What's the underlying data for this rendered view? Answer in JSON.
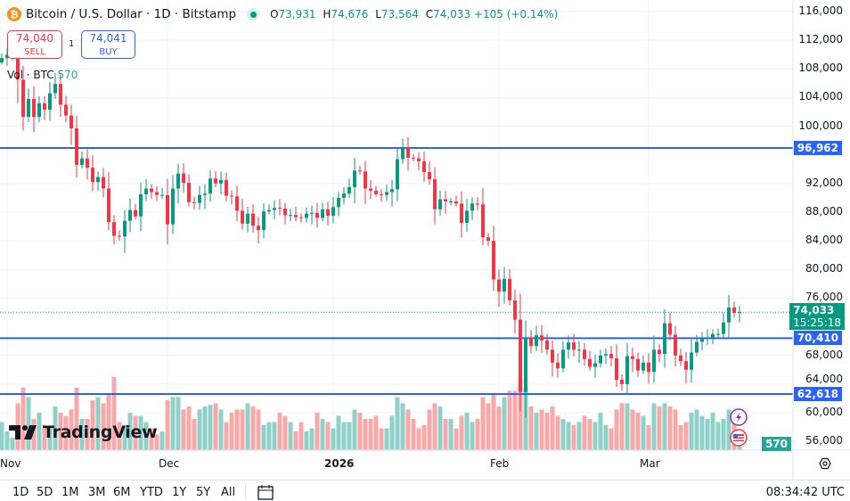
{
  "header": {
    "symbol": "Bitcoin / U.S. Dollar · 1D · Bitstamp",
    "coin_glyph": "₿",
    "ohlc": {
      "o_label": "O",
      "o": "73,931",
      "h_label": "H",
      "h": "74,676",
      "l_label": "L",
      "l": "73,564",
      "c_label": "C",
      "c": "74,033",
      "change": "+105 (+0.14%)"
    }
  },
  "trade": {
    "sell_price": "74,040",
    "sell_label": "SELL",
    "spread": "1",
    "buy_price": "74,041",
    "buy_label": "BUY"
  },
  "volume_legend": {
    "label": "Vol · BTC",
    "value": "570"
  },
  "price_axis": [
    "116,000",
    "112,000",
    "108,000",
    "104,000",
    "100,000",
    "92,000",
    "88,000",
    "84,000",
    "80,000",
    "76,000",
    "68,000",
    "64,000",
    "60,000",
    "56,000"
  ],
  "price_values": [
    116000,
    112000,
    108000,
    104000,
    100000,
    92000,
    88000,
    84000,
    80000,
    76000,
    68000,
    64000,
    60000,
    56000
  ],
  "price_tags": {
    "current": "74,033",
    "countdown": "15:25:18",
    "levels": [
      {
        "label": "96,962",
        "value": 96962
      },
      {
        "label": "70,410",
        "value": 70410
      },
      {
        "label": "62,618",
        "value": 62618
      }
    ],
    "volume": "570"
  },
  "time_axis": [
    {
      "label": "Nov",
      "date": "2025-11-01"
    },
    {
      "label": "Dec",
      "date": "2025-12-01"
    },
    {
      "label": "2026",
      "date": "2026-01-01"
    },
    {
      "label": "Feb",
      "date": "2026-02-01"
    },
    {
      "label": "Mar",
      "date": "2026-03-01"
    }
  ],
  "ranges": [
    "1D",
    "5D",
    "1M",
    "3M",
    "6M",
    "YTD",
    "1Y",
    "5Y",
    "All"
  ],
  "clock": "08:34:42 UTC",
  "logo": "TradingView",
  "colors": {
    "up": "#089981",
    "down": "#f23645",
    "line": "#2962ff",
    "vol_up": "#8fd1c8",
    "vol_down": "#f7a9a7"
  },
  "chart_data": {
    "type": "candlestick",
    "symbol": "BTCUSD",
    "ylim": [
      56000,
      116000
    ],
    "horizontal_lines": [
      96962,
      70410,
      62618
    ],
    "candles_close_volume": [
      [
        "2025-10-31",
        109500,
        900
      ],
      [
        "2025-11-01",
        110000,
        600
      ],
      [
        "2025-11-02",
        110500,
        400
      ],
      [
        "2025-11-03",
        106500,
        1500
      ],
      [
        "2025-11-04",
        101300,
        2000
      ],
      [
        "2025-11-05",
        103800,
        1700
      ],
      [
        "2025-11-06",
        101300,
        1000
      ],
      [
        "2025-11-07",
        103200,
        1200
      ],
      [
        "2025-11-08",
        102300,
        800
      ],
      [
        "2025-11-09",
        104600,
        700
      ],
      [
        "2025-11-10",
        105900,
        1400
      ],
      [
        "2025-11-11",
        103000,
        1200
      ],
      [
        "2025-11-12",
        101500,
        1100
      ],
      [
        "2025-11-13",
        99700,
        1300
      ],
      [
        "2025-11-14",
        94600,
        2000
      ],
      [
        "2025-11-15",
        95500,
        1000
      ],
      [
        "2025-11-16",
        94200,
        1000
      ],
      [
        "2025-11-17",
        92200,
        1600
      ],
      [
        "2025-11-18",
        92900,
        1700
      ],
      [
        "2025-11-19",
        91300,
        1500
      ],
      [
        "2025-11-20",
        86600,
        1800
      ],
      [
        "2025-11-21",
        84700,
        2340
      ],
      [
        "2025-11-22",
        84600,
        900
      ],
      [
        "2025-11-23",
        86800,
        800
      ],
      [
        "2025-11-24",
        88300,
        1200
      ],
      [
        "2025-11-25",
        87400,
        1100
      ],
      [
        "2025-11-26",
        90500,
        1100
      ],
      [
        "2025-11-27",
        91300,
        900
      ],
      [
        "2025-11-28",
        90800,
        700
      ],
      [
        "2025-11-29",
        90400,
        500
      ],
      [
        "2025-11-30",
        90400,
        600
      ],
      [
        "2025-12-01",
        86300,
        1600
      ],
      [
        "2025-12-02",
        91300,
        1700
      ],
      [
        "2025-12-03",
        93400,
        1700
      ],
      [
        "2025-12-04",
        92100,
        1300
      ],
      [
        "2025-12-05",
        89400,
        1400
      ],
      [
        "2025-12-06",
        89300,
        1000
      ],
      [
        "2025-12-07",
        90400,
        1300
      ],
      [
        "2025-12-08",
        90600,
        1400
      ],
      [
        "2025-12-09",
        92700,
        1450
      ],
      [
        "2025-12-10",
        92000,
        1500
      ],
      [
        "2025-12-11",
        92500,
        1300
      ],
      [
        "2025-12-12",
        90300,
        900
      ],
      [
        "2025-12-13",
        90200,
        1200
      ],
      [
        "2025-12-14",
        88200,
        1300
      ],
      [
        "2025-12-15",
        86400,
        1300
      ],
      [
        "2025-12-16",
        87800,
        1500
      ],
      [
        "2025-12-17",
        86100,
        1400
      ],
      [
        "2025-12-18",
        85500,
        1300
      ],
      [
        "2025-12-19",
        88100,
        800
      ],
      [
        "2025-12-20",
        88300,
        900
      ],
      [
        "2025-12-21",
        88600,
        900
      ],
      [
        "2025-12-22",
        88500,
        1200
      ],
      [
        "2025-12-23",
        87600,
        1100
      ],
      [
        "2025-12-24",
        87600,
        900
      ],
      [
        "2025-12-25",
        87300,
        600
      ],
      [
        "2025-12-26",
        87200,
        900
      ],
      [
        "2025-12-27",
        87800,
        600
      ],
      [
        "2025-12-28",
        87900,
        700
      ],
      [
        "2025-12-29",
        87200,
        1200
      ],
      [
        "2025-12-30",
        88400,
        1000
      ],
      [
        "2025-12-31",
        87500,
        900
      ],
      [
        "2026-01-01",
        88700,
        700
      ],
      [
        "2026-01-02",
        90000,
        1100
      ],
      [
        "2026-01-03",
        90600,
        900
      ],
      [
        "2026-01-04",
        91500,
        900
      ],
      [
        "2026-01-05",
        93800,
        1300
      ],
      [
        "2026-01-06",
        93700,
        1200
      ],
      [
        "2026-01-07",
        91300,
        1000
      ],
      [
        "2026-01-08",
        91000,
        1000
      ],
      [
        "2026-01-09",
        90500,
        1100
      ],
      [
        "2026-01-10",
        90400,
        700
      ],
      [
        "2026-01-11",
        90800,
        700
      ],
      [
        "2026-01-12",
        91200,
        1100
      ],
      [
        "2026-01-13",
        95400,
        1700
      ],
      [
        "2026-01-14",
        97000,
        1500
      ],
      [
        "2026-01-15",
        95600,
        1300
      ],
      [
        "2026-01-16",
        95500,
        1000
      ],
      [
        "2026-01-17",
        95100,
        700
      ],
      [
        "2026-01-18",
        93600,
        800
      ],
      [
        "2026-01-19",
        92600,
        1300
      ],
      [
        "2026-01-20",
        88400,
        1500
      ],
      [
        "2026-01-21",
        89800,
        1400
      ],
      [
        "2026-01-22",
        89500,
        1000
      ],
      [
        "2026-01-23",
        89500,
        1000
      ],
      [
        "2026-01-24",
        89200,
        700
      ],
      [
        "2026-01-25",
        86500,
        1100
      ],
      [
        "2026-01-26",
        88200,
        1200
      ],
      [
        "2026-01-27",
        89200,
        900
      ],
      [
        "2026-01-28",
        89100,
        1000
      ],
      [
        "2026-01-29",
        84500,
        1700
      ],
      [
        "2026-01-30",
        84000,
        1500
      ],
      [
        "2026-01-31",
        78600,
        1800
      ],
      [
        "2026-02-01",
        76900,
        1400
      ],
      [
        "2026-02-02",
        78700,
        1700
      ],
      [
        "2026-02-03",
        75700,
        1900
      ],
      [
        "2026-02-04",
        73000,
        1900
      ],
      [
        "2026-02-05",
        62900,
        2300
      ],
      [
        "2026-02-06",
        70500,
        2000
      ],
      [
        "2026-02-07",
        69300,
        1400
      ],
      [
        "2026-02-08",
        70800,
        1200
      ],
      [
        "2026-02-09",
        70100,
        1300
      ],
      [
        "2026-02-10",
        68800,
        1200
      ],
      [
        "2026-02-11",
        67000,
        1400
      ],
      [
        "2026-02-12",
        66200,
        1100
      ],
      [
        "2026-02-13",
        68800,
        1000
      ],
      [
        "2026-02-14",
        69800,
        900
      ],
      [
        "2026-02-15",
        68800,
        800
      ],
      [
        "2026-02-16",
        68800,
        900
      ],
      [
        "2026-02-17",
        67500,
        1100
      ],
      [
        "2026-02-18",
        66400,
        1000
      ],
      [
        "2026-02-19",
        66900,
        900
      ],
      [
        "2026-02-20",
        68000,
        1200
      ],
      [
        "2026-02-21",
        68200,
        800
      ],
      [
        "2026-02-22",
        67600,
        700
      ],
      [
        "2026-02-23",
        64600,
        1300
      ],
      [
        "2026-02-24",
        64000,
        1500
      ],
      [
        "2026-02-25",
        67900,
        1500
      ],
      [
        "2026-02-26",
        67500,
        1300
      ],
      [
        "2026-02-27",
        65900,
        1200
      ],
      [
        "2026-02-28",
        67000,
        1100
      ],
      [
        "2026-03-01",
        65700,
        800
      ],
      [
        "2026-03-02",
        68800,
        1500
      ],
      [
        "2026-03-03",
        68200,
        1400
      ],
      [
        "2026-03-04",
        72500,
        1500
      ],
      [
        "2026-03-05",
        70900,
        1400
      ],
      [
        "2026-03-06",
        68000,
        1300
      ],
      [
        "2026-03-07",
        67200,
        800
      ],
      [
        "2026-03-08",
        66000,
        900
      ],
      [
        "2026-03-09",
        68400,
        1200
      ],
      [
        "2026-03-10",
        69900,
        1300
      ],
      [
        "2026-03-11",
        70300,
        1100
      ],
      [
        "2026-03-12",
        70500,
        1000
      ],
      [
        "2026-03-13",
        71000,
        1200
      ],
      [
        "2026-03-14",
        71000,
        900
      ],
      [
        "2026-03-15",
        72600,
        1000
      ],
      [
        "2026-03-16",
        74700,
        1300
      ],
      [
        "2026-03-17",
        73931,
        900
      ],
      [
        "2026-03-18",
        74033,
        570
      ]
    ]
  }
}
